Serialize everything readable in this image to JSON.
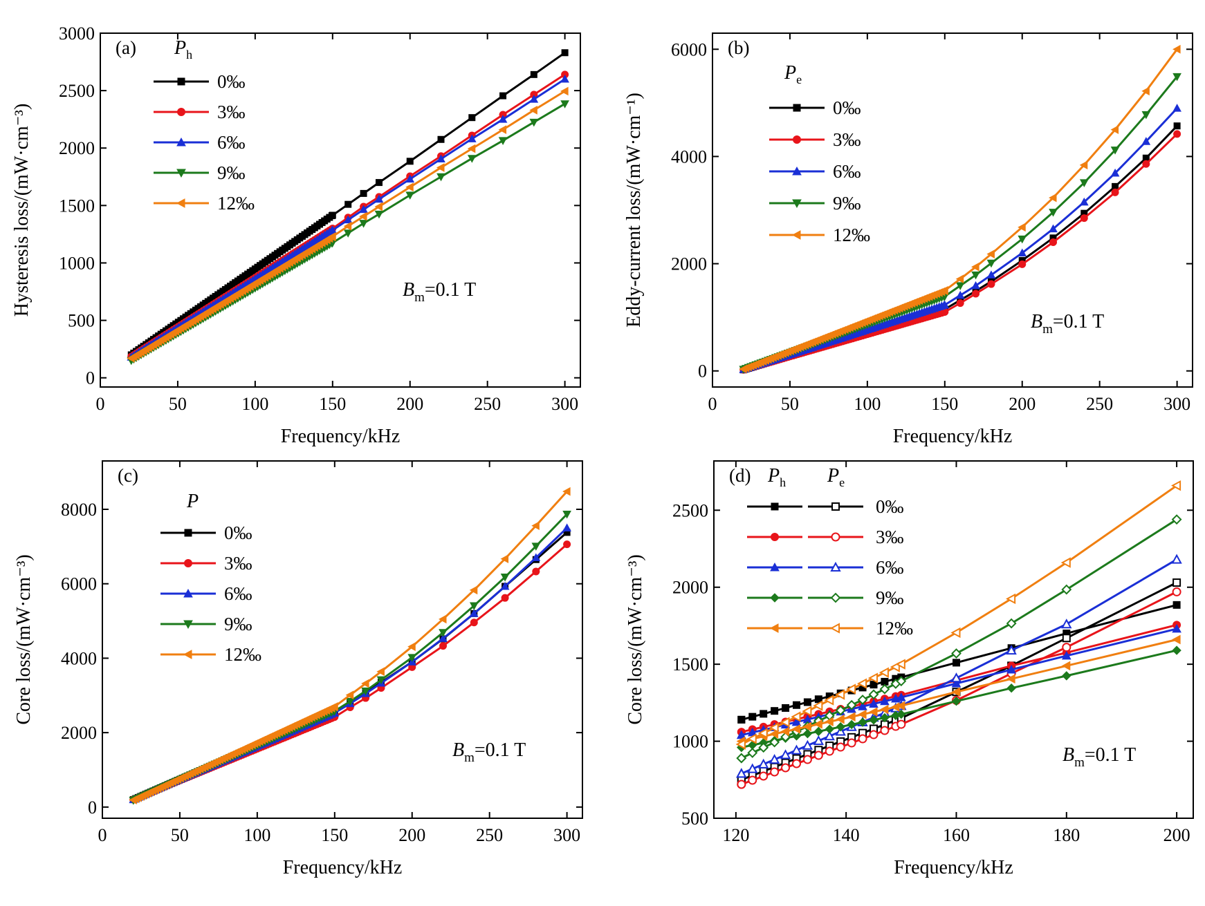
{
  "chart_data": [
    {
      "panel": "(a)",
      "type": "line",
      "xlabel": "Frequency/kHz",
      "ylabel": "Hysteresis loss/(mW·cm⁻³)",
      "xlim": [
        0,
        310
      ],
      "ylim": [
        -80,
        3000
      ],
      "xticks": [
        0,
        50,
        100,
        150,
        200,
        250,
        300
      ],
      "yticks": [
        0,
        500,
        1000,
        1500,
        2000,
        2500,
        3000
      ],
      "legend_title": {
        "main": "P",
        "sub": "h"
      },
      "annotation": {
        "main": "B",
        "sub": "m",
        "rest": "=0.1 T"
      },
      "x": [
        20,
        150,
        160,
        170,
        180,
        200,
        220,
        240,
        260,
        280,
        300
      ],
      "series": [
        {
          "name": "0‰",
          "color": "#000000",
          "marker": "square",
          "values": [
            200,
            1415,
            1510,
            1605,
            1700,
            1885,
            2075,
            2265,
            2455,
            2640,
            2830
          ]
        },
        {
          "name": "3‰",
          "color": "#e8141a",
          "marker": "circle",
          "values": [
            185,
            1300,
            1395,
            1490,
            1575,
            1755,
            1930,
            2110,
            2290,
            2465,
            2640
          ]
        },
        {
          "name": "6‰",
          "color": "#1a2fd6",
          "marker": "triangle-up",
          "values": [
            180,
            1285,
            1375,
            1465,
            1555,
            1730,
            1905,
            2080,
            2250,
            2425,
            2600
          ]
        },
        {
          "name": "9‰",
          "color": "#1c7a1c",
          "marker": "triangle-down",
          "values": [
            150,
            1175,
            1260,
            1345,
            1425,
            1590,
            1750,
            1910,
            2065,
            2225,
            2385
          ]
        },
        {
          "name": "12‰",
          "color": "#f07f10",
          "marker": "triangle-left",
          "values": [
            170,
            1230,
            1320,
            1405,
            1490,
            1660,
            1830,
            1995,
            2160,
            2330,
            2495
          ]
        }
      ]
    },
    {
      "panel": "(b)",
      "type": "line",
      "xlabel": "Frequency/kHz",
      "ylabel": "Eddy-current loss/(mW·cm⁻¹)",
      "xlim": [
        0,
        310
      ],
      "ylim": [
        -300,
        6300
      ],
      "xticks": [
        0,
        50,
        100,
        150,
        200,
        250,
        300
      ],
      "yticks": [
        0,
        2000,
        4000,
        6000
      ],
      "legend_title": {
        "main": "P",
        "sub": "e"
      },
      "annotation": {
        "main": "B",
        "sub": "m",
        "rest": "=0.1 T"
      },
      "x": [
        20,
        150,
        160,
        170,
        180,
        200,
        220,
        240,
        260,
        280,
        300
      ],
      "series": [
        {
          "name": "0‰",
          "color": "#000000",
          "marker": "square",
          "values": [
            20,
            1150,
            1320,
            1490,
            1670,
            2060,
            2480,
            2940,
            3440,
            3970,
            4570
          ]
        },
        {
          "name": "3‰",
          "color": "#e8141a",
          "marker": "circle",
          "values": [
            20,
            1100,
            1265,
            1440,
            1620,
            1990,
            2400,
            2850,
            3330,
            3860,
            4420
          ]
        },
        {
          "name": "6‰",
          "color": "#1a2fd6",
          "marker": "triangle-up",
          "values": [
            25,
            1230,
            1410,
            1590,
            1790,
            2200,
            2650,
            3150,
            3690,
            4280,
            4900
          ]
        },
        {
          "name": "9‰",
          "color": "#1c7a1c",
          "marker": "triangle-down",
          "values": [
            30,
            1390,
            1590,
            1790,
            2010,
            2460,
            2960,
            3510,
            4120,
            4780,
            5490
          ]
        },
        {
          "name": "12‰",
          "color": "#f07f10",
          "marker": "triangle-left",
          "values": [
            35,
            1500,
            1715,
            1940,
            2180,
            2680,
            3230,
            3840,
            4500,
            5220,
            6000
          ]
        }
      ]
    },
    {
      "panel": "(c)",
      "type": "line",
      "xlabel": "Frequency/kHz",
      "ylabel": "Core loss/(mW·cm⁻³)",
      "xlim": [
        0,
        310
      ],
      "ylim": [
        -300,
        9300
      ],
      "xticks": [
        0,
        50,
        100,
        150,
        200,
        250,
        300
      ],
      "yticks": [
        0,
        2000,
        4000,
        6000,
        8000
      ],
      "legend_title": {
        "main": "P",
        "sub": ""
      },
      "annotation": {
        "main": "B",
        "sub": "m",
        "rest": "=0.1 T"
      },
      "x": [
        20,
        150,
        160,
        170,
        180,
        200,
        220,
        240,
        260,
        280,
        300
      ],
      "series": [
        {
          "name": "0‰",
          "color": "#000000",
          "marker": "square",
          "values": [
            200,
            2550,
            2800,
            3080,
            3350,
            3900,
            4520,
            5200,
            5930,
            6650,
            7380
          ]
        },
        {
          "name": "3‰",
          "color": "#e8141a",
          "marker": "circle",
          "values": [
            200,
            2420,
            2680,
            2930,
            3200,
            3760,
            4330,
            4960,
            5620,
            6330,
            7060
          ]
        },
        {
          "name": "6‰",
          "color": "#1a2fd6",
          "marker": "triangle-up",
          "values": [
            200,
            2530,
            2780,
            3050,
            3330,
            3900,
            4530,
            5200,
            5930,
            6700,
            7500
          ]
        },
        {
          "name": "9‰",
          "color": "#1c7a1c",
          "marker": "triangle-down",
          "values": [
            180,
            2580,
            2840,
            3120,
            3420,
            4020,
            4690,
            5410,
            6180,
            7010,
            7870
          ]
        },
        {
          "name": "12‰",
          "color": "#f07f10",
          "marker": "triangle-left",
          "values": [
            190,
            2700,
            3010,
            3320,
            3640,
            4310,
            5050,
            5830,
            6670,
            7560,
            8480
          ]
        }
      ]
    },
    {
      "panel": "(d)",
      "type": "line",
      "xlabel": "Frequency/kHz",
      "ylabel": "Core loss/(mW·cm⁻³)",
      "xlim": [
        116,
        203
      ],
      "ylim": [
        500,
        2820
      ],
      "xticks": [
        120,
        140,
        160,
        180,
        200
      ],
      "yticks": [
        500,
        1000,
        1500,
        2000,
        2500
      ],
      "legend_title": {
        "main": "P",
        "sub": "h",
        "main2": "P",
        "sub2": "e"
      },
      "annotation": {
        "main": "B",
        "sub": "m",
        "rest": "=0.1 T"
      },
      "x": [
        121,
        150,
        160,
        170,
        180,
        200
      ],
      "series": [
        {
          "name": "0‰",
          "group": "Ph",
          "color": "#000000",
          "marker": "square",
          "filled": true,
          "values": [
            1140,
            1415,
            1510,
            1605,
            1700,
            1885
          ]
        },
        {
          "name": "0‰",
          "group": "Pe",
          "color": "#000000",
          "marker": "square",
          "filled": false,
          "values": [
            750,
            1150,
            1320,
            1490,
            1670,
            2030
          ]
        },
        {
          "name": "3‰",
          "group": "Ph",
          "color": "#e8141a",
          "marker": "circle",
          "filled": true,
          "values": [
            1060,
            1300,
            1395,
            1490,
            1575,
            1755
          ]
        },
        {
          "name": "3‰",
          "group": "Pe",
          "color": "#e8141a",
          "marker": "circle",
          "filled": false,
          "values": [
            720,
            1110,
            1265,
            1440,
            1610,
            1970
          ]
        },
        {
          "name": "6‰",
          "group": "Ph",
          "color": "#1a2fd6",
          "marker": "triangle-up",
          "filled": true,
          "values": [
            1040,
            1285,
            1375,
            1465,
            1555,
            1730
          ]
        },
        {
          "name": "6‰",
          "group": "Pe",
          "color": "#1a2fd6",
          "marker": "triangle-up",
          "filled": false,
          "values": [
            790,
            1230,
            1410,
            1590,
            1760,
            2180
          ]
        },
        {
          "name": "9‰",
          "group": "Ph",
          "color": "#1c7a1c",
          "marker": "diamond",
          "filled": true,
          "values": [
            960,
            1175,
            1260,
            1345,
            1425,
            1590
          ]
        },
        {
          "name": "9‰",
          "group": "Pe",
          "color": "#1c7a1c",
          "marker": "diamond",
          "filled": false,
          "values": [
            890,
            1390,
            1570,
            1765,
            1985,
            2440
          ]
        },
        {
          "name": "12‰",
          "group": "Ph",
          "color": "#f07f10",
          "marker": "triangle-left",
          "filled": true,
          "values": [
            1000,
            1230,
            1320,
            1405,
            1490,
            1660
          ]
        },
        {
          "name": "12‰",
          "group": "Pe",
          "color": "#f07f10",
          "marker": "triangle-left",
          "filled": false,
          "values": [
            980,
            1500,
            1705,
            1925,
            2160,
            2660
          ]
        }
      ]
    }
  ]
}
